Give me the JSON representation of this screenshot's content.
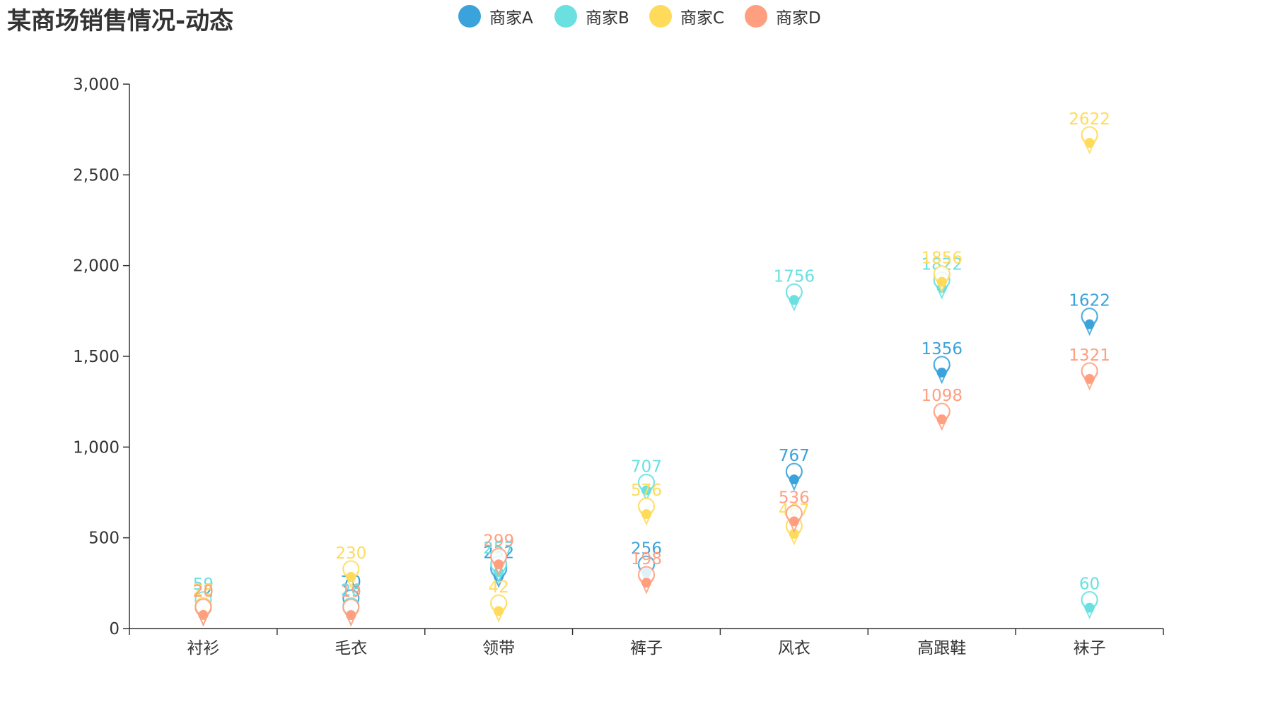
{
  "chart_data": {
    "type": "scatter",
    "title": "某商场销售情况-动态",
    "categories": [
      "衬衫",
      "毛衣",
      "领带",
      "裤子",
      "风衣",
      "高跟鞋",
      "袜子"
    ],
    "ylim": [
      0,
      3000
    ],
    "yticks": [
      0,
      500,
      1000,
      1500,
      2000,
      2500,
      3000
    ],
    "ytick_labels": [
      "0",
      "500",
      "1,000",
      "1,500",
      "2,000",
      "2,500",
      "3,000"
    ],
    "legend_position": "top-center",
    "grid": false,
    "series": [
      {
        "name": "商家A",
        "color": "#3ba3dc",
        "values": [
          22,
          70,
          232,
          256,
          767,
          1356,
          1622
        ]
      },
      {
        "name": "商家B",
        "color": "#6ae0e1",
        "values": [
          59,
          26,
          257,
          707,
          1756,
          1822,
          60
        ]
      },
      {
        "name": "商家C",
        "color": "#ffdb5c",
        "values": [
          28,
          230,
          42,
          576,
          467,
          1856,
          2622
        ]
      },
      {
        "name": "商家D",
        "color": "#ff9f7f",
        "values": [
          20,
          19,
          299,
          198,
          536,
          1098,
          1321
        ]
      }
    ]
  }
}
